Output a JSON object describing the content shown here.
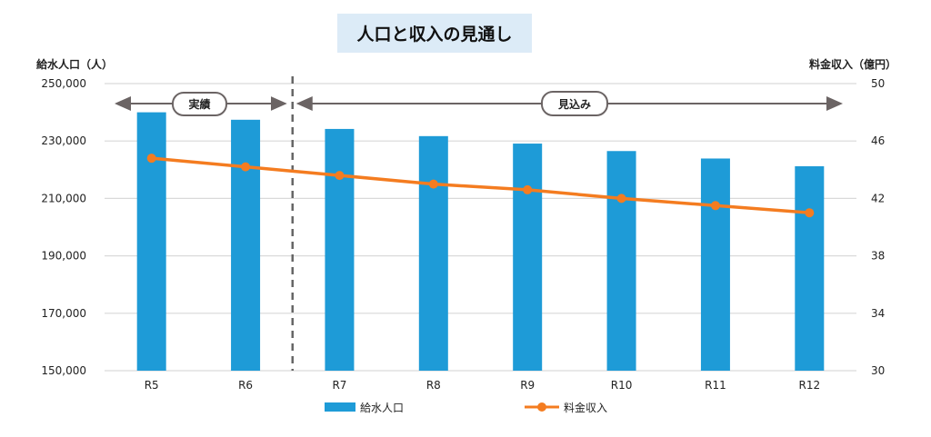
{
  "chart_data": {
    "type": "bar+line",
    "title": "人口と収入の見通し",
    "categories": [
      "R5",
      "R6",
      "R7",
      "R8",
      "R9",
      "R10",
      "R11",
      "R12"
    ],
    "series": [
      {
        "name": "給水人口",
        "type": "bar",
        "axis": "left",
        "color": "#1e9bd7",
        "values": [
          240000,
          237400,
          234200,
          231700,
          229100,
          226500,
          223900,
          221200
        ]
      },
      {
        "name": "料金収入",
        "type": "line",
        "axis": "right",
        "color": "#f47c20",
        "values": [
          44.8,
          44.2,
          43.6,
          43.0,
          42.6,
          42.0,
          41.5,
          41.0
        ]
      }
    ],
    "ylabel_left": "給水人口（人）",
    "ylabel_right": "料金収入（億円）",
    "ylim_left": [
      150000,
      250000
    ],
    "yticks_left": [
      "150,000",
      "170,000",
      "190,000",
      "210,000",
      "230,000",
      "250,000"
    ],
    "ylim_right": [
      30,
      50
    ],
    "yticks_right": [
      "30",
      "34",
      "38",
      "42",
      "46",
      "50"
    ],
    "grid": true,
    "legend": "bottom",
    "annotations": {
      "actual": "実績",
      "forecast": "見込み"
    }
  }
}
